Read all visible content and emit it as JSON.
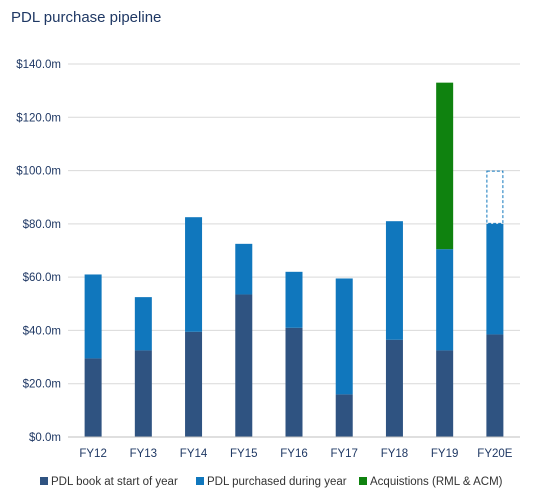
{
  "chart_data": {
    "type": "bar",
    "stacked": true,
    "title": "PDL purchase pipeline",
    "xlabel": "",
    "ylabel": "",
    "categories": [
      "FY12",
      "FY13",
      "FY14",
      "FY15",
      "FY16",
      "FY17",
      "FY18",
      "FY19",
      "FY20E"
    ],
    "ylim": [
      0,
      140
    ],
    "yticks": [
      0,
      20,
      40,
      60,
      80,
      100,
      120,
      140
    ],
    "ytick_labels": [
      "$0.0m",
      "$20.0m",
      "$40.0m",
      "$60.0m",
      "$80.0m",
      "$100.0m",
      "$120.0m",
      "$140.0m"
    ],
    "grid": true,
    "legend": "bottom",
    "series": [
      {
        "name": "PDL book at start of year",
        "color": "#2f5381",
        "values": [
          29.5,
          32.5,
          39.5,
          53.5,
          41,
          16,
          36.5,
          32.5,
          38.5
        ]
      },
      {
        "name": "PDL purchased during year",
        "color": "#1077bd",
        "values": [
          31.5,
          20,
          43,
          19,
          21,
          43.5,
          44.5,
          38,
          41.5
        ]
      },
      {
        "name": "Acquistions (RML & ACM)",
        "color": "#0f820f",
        "values": [
          0,
          0,
          0,
          0,
          0,
          0,
          0,
          62.5,
          0
        ]
      }
    ],
    "forecast_outline": {
      "category": "FY20E",
      "from": 80,
      "to": 100,
      "color": "#1077bd"
    }
  }
}
